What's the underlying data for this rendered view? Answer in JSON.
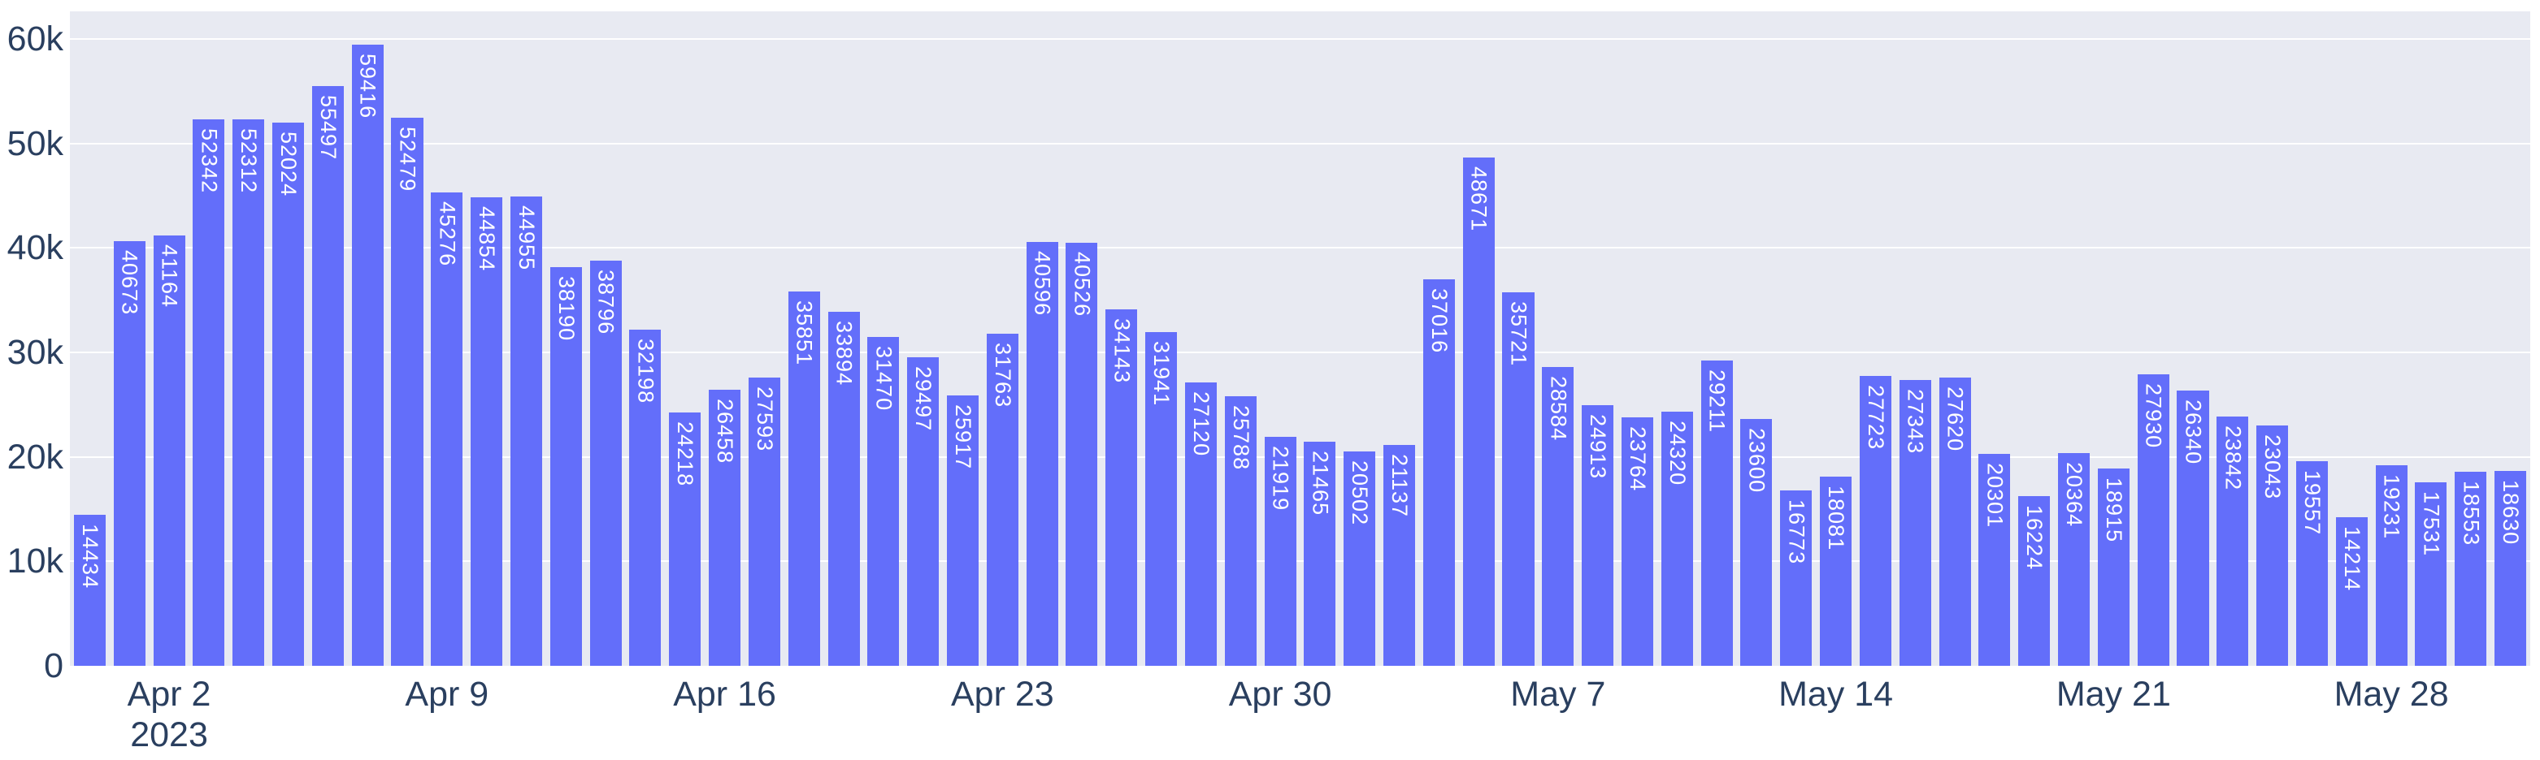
{
  "chart_data": {
    "type": "bar",
    "title": "",
    "xlabel": "",
    "ylabel": "",
    "grid": true,
    "legend": false,
    "ylim": [
      0,
      62640
    ],
    "x": [
      "2023-03-31",
      "2023-04-01",
      "2023-04-02",
      "2023-04-03",
      "2023-04-04",
      "2023-04-05",
      "2023-04-06",
      "2023-04-07",
      "2023-04-08",
      "2023-04-09",
      "2023-04-10",
      "2023-04-11",
      "2023-04-12",
      "2023-04-13",
      "2023-04-14",
      "2023-04-15",
      "2023-04-16",
      "2023-04-17",
      "2023-04-18",
      "2023-04-19",
      "2023-04-20",
      "2023-04-21",
      "2023-04-22",
      "2023-04-23",
      "2023-04-24",
      "2023-04-25",
      "2023-04-26",
      "2023-04-27",
      "2023-04-28",
      "2023-04-29",
      "2023-04-30",
      "2023-05-01",
      "2023-05-02",
      "2023-05-03",
      "2023-05-04",
      "2023-05-05",
      "2023-05-06",
      "2023-05-07",
      "2023-05-08",
      "2023-05-09",
      "2023-05-10",
      "2023-05-11",
      "2023-05-12",
      "2023-05-13",
      "2023-05-14",
      "2023-05-15",
      "2023-05-16",
      "2023-05-17",
      "2023-05-18",
      "2023-05-19",
      "2023-05-20",
      "2023-05-21",
      "2023-05-22",
      "2023-05-23",
      "2023-05-24",
      "2023-05-25",
      "2023-05-26",
      "2023-05-27",
      "2023-05-28",
      "2023-05-29",
      "2023-05-30",
      "2023-05-31"
    ],
    "values": [
      14434,
      40673,
      41164,
      52342,
      52312,
      52024,
      55497,
      59416,
      52479,
      45276,
      44854,
      44955,
      38190,
      38796,
      32198,
      24218,
      26458,
      27593,
      35851,
      33894,
      31470,
      29497,
      25917,
      31763,
      40596,
      40526,
      34143,
      31941,
      27120,
      25788,
      21919,
      21465,
      20502,
      21137,
      37016,
      48671,
      35721,
      28584,
      24913,
      23764,
      24320,
      29211,
      23600,
      16773,
      18081,
      27723,
      27343,
      27620,
      20301,
      16224,
      20364,
      18915,
      27930,
      26340,
      23842,
      23043,
      19557,
      14214,
      19231,
      17531,
      18553,
      18630
    ],
    "yticks": [
      {
        "value": 0,
        "label": "0"
      },
      {
        "value": 10000,
        "label": "10k"
      },
      {
        "value": 20000,
        "label": "20k"
      },
      {
        "value": 30000,
        "label": "30k"
      },
      {
        "value": 40000,
        "label": "40k"
      },
      {
        "value": 50000,
        "label": "50k"
      },
      {
        "value": 60000,
        "label": "60k"
      }
    ],
    "xticks": [
      {
        "index": 2,
        "label": "Apr 2",
        "sublabel": "2023"
      },
      {
        "index": 9,
        "label": "Apr 9"
      },
      {
        "index": 16,
        "label": "Apr 16"
      },
      {
        "index": 23,
        "label": "Apr 23"
      },
      {
        "index": 30,
        "label": "Apr 30"
      },
      {
        "index": 37,
        "label": "May 7"
      },
      {
        "index": 44,
        "label": "May 14"
      },
      {
        "index": 51,
        "label": "May 21"
      },
      {
        "index": 58,
        "label": "May 28"
      }
    ],
    "colors": {
      "bar": "#636EFA",
      "plot_background": "#E8EAF2",
      "gridline": "#FFFFFF",
      "tick_text": "#2A3F5F",
      "bar_label_text": "#FFFFFF"
    },
    "layout_hints": {
      "bar_value_labels": "inside-top, rotated 90deg clockwise",
      "legend_position": "none"
    }
  }
}
